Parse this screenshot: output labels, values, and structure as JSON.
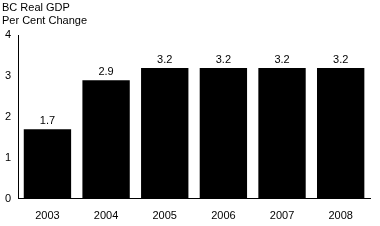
{
  "chart_data": {
    "type": "bar",
    "title": [
      "BC Real GDP",
      "Per Cent Change"
    ],
    "categories": [
      "2003",
      "2004",
      "2005",
      "2006",
      "2007",
      "2008"
    ],
    "values": [
      1.7,
      2.9,
      3.2,
      3.2,
      3.2,
      3.2
    ],
    "color": "#000000",
    "ylim": [
      0,
      4
    ],
    "yticks": [
      0,
      1,
      2,
      3,
      4
    ],
    "grid": false,
    "data_labels": true
  }
}
